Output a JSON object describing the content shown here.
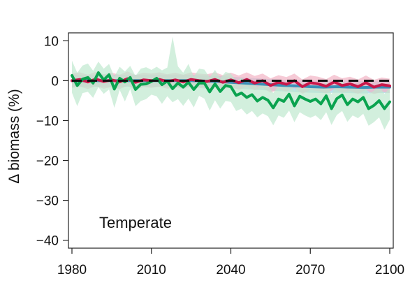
{
  "chart_data": {
    "type": "line",
    "ylabel": "Δ biomass (%)",
    "xlabel": "",
    "annotation": "Temperate",
    "xlim": [
      1980,
      2100
    ],
    "ylim": [
      -42,
      12
    ],
    "x_ticks": [
      1980,
      2010,
      2040,
      2070,
      2100
    ],
    "x_tick_labels": [
      "1980",
      "2010",
      "2040",
      "2070",
      "2100"
    ],
    "y_ticks": [
      10,
      0,
      -10,
      -20,
      -30,
      -40
    ],
    "y_tick_labels": [
      "10",
      "0",
      "−10",
      "−20",
      "−30",
      "−40"
    ],
    "grid": false,
    "legend": "none",
    "reference_line": {
      "y": 0,
      "style": "dashed",
      "color": "#111111"
    },
    "series": [
      {
        "color": "#3a8fb7",
        "band_color": "#9fd0e8",
        "x": [
          1980,
          1985,
          1990,
          1995,
          2000,
          2005,
          2010,
          2015,
          2020,
          2025,
          2030,
          2035,
          2040,
          2045,
          2050,
          2055,
          2060,
          2065,
          2070,
          2075,
          2080,
          2085,
          2090,
          2095,
          2100
        ],
        "values": [
          0,
          0,
          0,
          0,
          0,
          0,
          0,
          0,
          0,
          0,
          -0.1,
          -0.2,
          -0.4,
          -0.6,
          -0.8,
          -1.0,
          -1.2,
          -1.3,
          -1.5,
          -1.6,
          -1.5,
          -1.6,
          -1.7,
          -1.6,
          -1.6
        ],
        "band_upper": [
          1.5,
          1.5,
          1.5,
          1.5,
          1.5,
          1.5,
          1.5,
          1.5,
          1.5,
          1.5,
          1.3,
          1.2,
          1.0,
          0.8,
          0.6,
          0.4,
          0.2,
          0.2,
          0.0,
          0.0,
          0.1,
          0.0,
          -0.1,
          0.0,
          0.0
        ],
        "band_lower": [
          -1.5,
          -1.5,
          -1.5,
          -1.5,
          -1.5,
          -1.5,
          -1.5,
          -1.5,
          -1.5,
          -1.5,
          -1.6,
          -1.7,
          -1.9,
          -2.1,
          -2.3,
          -2.5,
          -2.7,
          -2.9,
          -3.0,
          -3.1,
          -3.0,
          -3.1,
          -3.2,
          -3.1,
          -3.1
        ]
      },
      {
        "color": "#c8184a",
        "band_color": "#f2b3c4",
        "x": [
          1980,
          1983,
          1986,
          1989,
          1992,
          1995,
          1998,
          2001,
          2004,
          2007,
          2010,
          2013,
          2016,
          2019,
          2022,
          2025,
          2028,
          2031,
          2034,
          2037,
          2040,
          2043,
          2046,
          2049,
          2052,
          2055,
          2058,
          2061,
          2064,
          2067,
          2070,
          2073,
          2076,
          2079,
          2082,
          2085,
          2088,
          2091,
          2094,
          2097,
          2100
        ],
        "values": [
          0,
          0.3,
          -0.3,
          0.4,
          -0.2,
          0.2,
          -0.3,
          0.5,
          -0.4,
          0.2,
          0,
          0.3,
          -0.2,
          0.2,
          -0.3,
          0.3,
          0,
          -0.2,
          0.3,
          -0.4,
          0.2,
          -0.5,
          0.3,
          -0.6,
          0,
          -1.2,
          -0.4,
          -0.9,
          0,
          -1.5,
          -0.5,
          -0.8,
          -1.4,
          -0.3,
          -1.2,
          -0.8,
          -1.5,
          -0.5,
          -1.6,
          -1.0,
          -1.3
        ],
        "band_upper": [
          1.8,
          2.1,
          1.5,
          2.2,
          1.6,
          2.0,
          1.5,
          2.3,
          1.4,
          2.0,
          1.8,
          2.1,
          1.6,
          2.0,
          1.5,
          2.1,
          1.8,
          1.6,
          2.1,
          1.4,
          2.0,
          1.3,
          2.1,
          1.2,
          1.8,
          0.6,
          1.4,
          0.9,
          1.8,
          0.3,
          1.3,
          1.0,
          0.4,
          1.5,
          0.6,
          1.0,
          0.3,
          1.3,
          0.2,
          0.8,
          0.5
        ],
        "band_lower": [
          -1.8,
          -1.5,
          -2.1,
          -1.4,
          -2.0,
          -1.6,
          -2.1,
          -1.3,
          -2.2,
          -1.6,
          -1.8,
          -1.5,
          -2.0,
          -1.6,
          -2.1,
          -1.5,
          -1.8,
          -2.0,
          -1.5,
          -2.2,
          -1.6,
          -2.3,
          -1.5,
          -2.4,
          -1.8,
          -3.0,
          -2.2,
          -2.7,
          -1.8,
          -3.3,
          -2.3,
          -2.6,
          -3.2,
          -2.1,
          -3.0,
          -2.6,
          -3.3,
          -2.3,
          -3.4,
          -2.8,
          -3.1
        ]
      },
      {
        "color": "#0aa34f",
        "band_color": "#bfe8cf",
        "x": [
          1980,
          1982,
          1984,
          1986,
          1988,
          1990,
          1992,
          1994,
          1996,
          1998,
          2000,
          2002,
          2004,
          2006,
          2008,
          2010,
          2012,
          2014,
          2016,
          2018,
          2020,
          2022,
          2024,
          2026,
          2028,
          2030,
          2032,
          2034,
          2036,
          2038,
          2040,
          2042,
          2044,
          2046,
          2048,
          2050,
          2052,
          2054,
          2056,
          2058,
          2060,
          2062,
          2064,
          2066,
          2068,
          2070,
          2072,
          2074,
          2076,
          2078,
          2080,
          2082,
          2084,
          2086,
          2088,
          2090,
          2092,
          2094,
          2096,
          2098,
          2100
        ],
        "values": [
          1.3,
          -1.2,
          0.4,
          0.8,
          -0.6,
          2.0,
          0.2,
          1.5,
          -2.1,
          0.6,
          -0.3,
          0.8,
          -2.2,
          -0.9,
          -0.8,
          -0.2,
          0.6,
          -1.0,
          -0.1,
          -2.0,
          -0.6,
          -1.6,
          -0.4,
          -2.2,
          -0.6,
          -0.6,
          -2.8,
          -0.8,
          -2.7,
          -1.2,
          -1.5,
          -3.7,
          -3.1,
          -4.2,
          -3.5,
          -5.1,
          -4.2,
          -4.9,
          -6.8,
          -4.6,
          -5.2,
          -3.4,
          -6.3,
          -3.9,
          -4.6,
          -5.2,
          -4.6,
          -5.8,
          -3.8,
          -7.0,
          -4.5,
          -3.6,
          -6.0,
          -4.6,
          -5.3,
          -4.2,
          -7.0,
          -6.2,
          -5.0,
          -7.0,
          -5.3
        ],
        "band_upper": [
          5.0,
          2.0,
          3.8,
          4.3,
          2.5,
          4.8,
          3.0,
          4.2,
          1.0,
          3.5,
          2.3,
          3.7,
          1.2,
          3.0,
          3.4,
          2.7,
          3.5,
          2.6,
          3.3,
          11.0,
          3.6,
          2.0,
          4.2,
          1.0,
          3.0,
          2.8,
          0.8,
          2.7,
          0.6,
          2.2,
          1.8,
          -0.1,
          0.7,
          -0.5,
          0.3,
          -1.6,
          -0.6,
          -1.3,
          -3.1,
          -1.1,
          -1.6,
          0.2,
          -2.6,
          -0.4,
          -1.1,
          -1.6,
          -0.9,
          -2.2,
          -0.2,
          -3.4,
          -0.9,
          0.0,
          -2.4,
          -1.0,
          -1.6,
          -0.6,
          -3.3,
          -2.5,
          -1.4,
          -3.3,
          -1.8
        ],
        "band_lower": [
          -3.0,
          -6.4,
          -3.1,
          -2.8,
          -4.3,
          -1.6,
          -3.3,
          -2.2,
          -6.8,
          -2.3,
          -5.2,
          -2.1,
          -6.4,
          -5.1,
          -4.6,
          -3.5,
          -3.9,
          -5.8,
          -3.9,
          -5.4,
          -4.6,
          -6.3,
          -4.5,
          -6.7,
          -3.8,
          -4.5,
          -7.5,
          -4.9,
          -7.0,
          -5.1,
          -5.3,
          -7.6,
          -7.0,
          -8.5,
          -7.6,
          -9.2,
          -8.2,
          -8.9,
          -11.2,
          -8.7,
          -9.3,
          -7.5,
          -10.4,
          -7.9,
          -8.7,
          -9.3,
          -8.7,
          -9.9,
          -7.9,
          -11.1,
          -8.6,
          -7.6,
          -10.3,
          -8.7,
          -9.4,
          -8.3,
          -11.3,
          -10.4,
          -9.2,
          -12.3,
          -9.8
        ]
      }
    ]
  }
}
